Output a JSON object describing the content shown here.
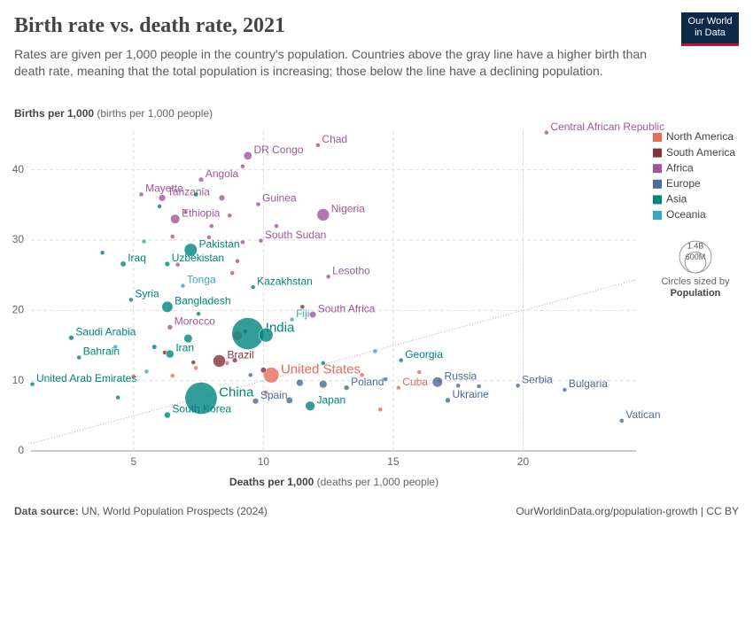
{
  "chart_data": {
    "type": "scatter",
    "title": "Birth rate vs. death rate, 2021",
    "subtitle": "Rates are given per 1,000 people in the country's population. Countries above the gray line have a higher birth than death rate, meaning that the total population is increasing; those below the line have a declining population.",
    "y_label": "Births per 1,000",
    "y_label_unit": "(births per 1,000 people)",
    "x_label": "Deaths per 1,000",
    "x_label_unit": "(deaths per 1,000 people)",
    "xlim": [
      1.05,
      24.35
    ],
    "ylim": [
      0,
      45.5
    ],
    "xticks": [
      5,
      10,
      15,
      20
    ],
    "yticks": [
      0,
      10,
      20,
      30,
      40
    ],
    "grid": true,
    "legend": "right",
    "size_legend_title": "Circles sized by",
    "size_legend_variable": "Population",
    "size_legend": [
      {
        "value": 1400,
        "label": "1.4B"
      },
      {
        "value": 600,
        "label": "600M"
      }
    ],
    "logo": [
      "Our World",
      "in Data"
    ],
    "source_label": "Data source:",
    "source": "UN, World Population Prospects (2024)",
    "url": "OurWorldinData.org/population-growth | CC BY",
    "series": [
      {
        "name": "North America",
        "color": "#e56e5a",
        "labels": [
          "United States",
          "Cuba",
          null,
          null,
          null,
          null,
          null,
          null,
          null,
          null,
          null,
          null
        ],
        "x": [
          10.3,
          15.2,
          9.0,
          6.5,
          8.6,
          7.4,
          5.0,
          10.1,
          14.5,
          16.0,
          16.8,
          13.8
        ],
        "values": [
          10.8,
          9.0,
          16.4,
          10.7,
          12.5,
          11.8,
          10.6,
          8.3,
          5.9,
          11.2,
          10.0,
          10.8
        ],
        "sizes": [
          337,
          11,
          126,
          5,
          3,
          10,
          2,
          4,
          3,
          1,
          2,
          1
        ]
      },
      {
        "name": "South America",
        "color": "#883039",
        "labels": [
          "Brazil",
          null,
          null,
          null,
          null,
          null,
          null
        ],
        "x": [
          8.3,
          9.3,
          8.9,
          11.5,
          7.3,
          6.2,
          10.0
        ],
        "values": [
          12.8,
          17.0,
          12.9,
          20.5,
          12.6,
          14.0,
          11.5
        ],
        "sizes": [
          214,
          12,
          34,
          3,
          19,
          7,
          46
        ]
      },
      {
        "name": "Africa",
        "color": "#a2559c",
        "labels": [
          "DR Congo",
          "Chad",
          "Central African Republic",
          "Angola",
          "Mayotte",
          "Tanzania",
          "Guinea",
          "Ethiopia",
          "Nigeria",
          "South Sudan",
          "Lesotho",
          "South Africa",
          "Morocco",
          null,
          null,
          null,
          null,
          null,
          null,
          null,
          null,
          null,
          null,
          null,
          null
        ],
        "x": [
          9.4,
          12.1,
          20.9,
          7.6,
          5.3,
          6.1,
          9.8,
          6.6,
          12.3,
          9.9,
          12.5,
          11.9,
          6.4,
          7.0,
          8.0,
          8.7,
          6.5,
          9.2,
          8.4,
          7.9,
          9.2,
          10.5,
          6.7,
          9.0,
          8.8
        ],
        "values": [
          42.0,
          43.5,
          45.3,
          38.6,
          36.5,
          36.0,
          35.1,
          33.0,
          33.6,
          29.9,
          24.8,
          19.4,
          17.6,
          34.0,
          32.0,
          33.5,
          30.5,
          40.5,
          36.0,
          30.4,
          29.7,
          32.0,
          26.5,
          27.0,
          25.3
        ],
        "sizes": [
          95,
          18,
          5,
          35,
          0.3,
          64,
          14,
          120,
          213,
          11,
          2.3,
          60,
          37,
          28,
          17,
          22,
          12,
          26,
          48,
          15,
          9,
          6,
          20,
          5,
          3
        ]
      },
      {
        "name": "Europe",
        "color": "#4c6a9c",
        "labels": [
          "Poland",
          "Russia",
          "Ukraine",
          "Serbia",
          "Bulgaria",
          "Vatican",
          "Spain",
          null,
          null,
          null,
          null,
          null,
          null,
          null
        ],
        "x": [
          13.2,
          16.7,
          17.1,
          19.8,
          21.6,
          23.8,
          9.7,
          12.3,
          11.4,
          11.0,
          14.7,
          17.5,
          18.3,
          9.5
        ],
        "values": [
          9.0,
          9.8,
          7.2,
          9.3,
          8.7,
          4.3,
          7.1,
          9.5,
          9.7,
          7.2,
          10.2,
          9.3,
          9.2,
          10.8
        ],
        "sizes": [
          38,
          145,
          39,
          7,
          6.9,
          0.001,
          47,
          83,
          68,
          59,
          10,
          3,
          2,
          11
        ]
      },
      {
        "name": "Asia",
        "color": "#00847e",
        "labels": [
          "Pakistan",
          "Iraq",
          "Uzbekistan",
          "Kazakhstan",
          "Syria",
          "Bangladesh",
          "India",
          "Saudi Arabia",
          "Iran",
          "Bahrain",
          "United Arab Emirates",
          "China",
          "South Korea",
          "Japan",
          "Georgia",
          null,
          null,
          null,
          null,
          null,
          null,
          null,
          null,
          null
        ],
        "x": [
          7.2,
          4.6,
          6.3,
          9.6,
          4.9,
          6.3,
          9.4,
          2.6,
          6.4,
          2.9,
          1.1,
          7.6,
          6.3,
          11.8,
          15.3,
          10.1,
          3.8,
          7.4,
          6.0,
          7.5,
          7.1,
          5.8,
          4.4,
          12.3
        ],
        "values": [
          28.6,
          26.6,
          26.6,
          23.3,
          21.5,
          20.5,
          16.7,
          16.1,
          13.8,
          13.3,
          9.5,
          7.5,
          5.1,
          6.4,
          12.9,
          16.5,
          28.2,
          36.5,
          34.8,
          19.5,
          16.0,
          14.8,
          7.6,
          12.5
        ],
        "sizes": [
          231,
          43,
          35,
          19,
          21,
          169,
          1410,
          36,
          88,
          1.5,
          9.4,
          1430,
          52,
          125,
          3.8,
          275,
          4,
          30,
          18,
          20,
          98,
          33,
          2,
          1
        ]
      },
      {
        "name": "Oceania",
        "color": "#38aaba",
        "labels": [
          "Tonga",
          "Fiji",
          null,
          null,
          null,
          null
        ],
        "x": [
          6.9,
          11.1,
          5.4,
          4.3,
          5.5,
          14.3
        ],
        "values": [
          23.5,
          18.7,
          29.8,
          14.8,
          11.3,
          14.2
        ],
        "sizes": [
          0.1,
          0.9,
          10,
          0.3,
          26,
          0.1
        ]
      }
    ]
  }
}
